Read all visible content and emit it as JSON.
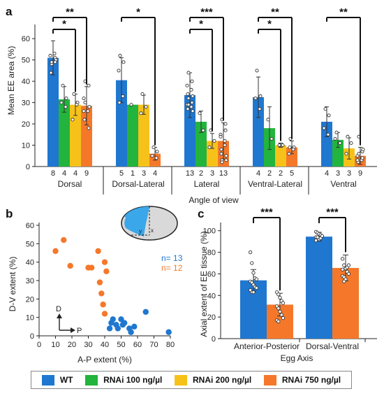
{
  "colors": {
    "WT": "#1f77d0",
    "RNAi100": "#22b43c",
    "RNAi200": "#f6c21a",
    "RNAi750": "#f5782a"
  },
  "panels": {
    "a": "a",
    "b": "b",
    "c": "c"
  },
  "legend": [
    {
      "label": "WT",
      "color": "#1f77d0"
    },
    {
      "label": "RNAi 100 ng/µl",
      "color": "#22b43c"
    },
    {
      "label": "RNAi 200 ng/µl",
      "color": "#f6c21a"
    },
    {
      "label": "RNAi 750 ng/µl",
      "color": "#f5782a"
    }
  ],
  "chart_data": [
    {
      "panel": "a",
      "type": "bar",
      "ylabel": "Mean EE area (%)",
      "xlabel": "Angle of view",
      "ylim": [
        0,
        65
      ],
      "yticks": [
        0,
        10,
        20,
        30,
        40,
        50,
        60
      ],
      "categories": [
        "Dorsal",
        "Dorsal-Lateral",
        "Lateral",
        "Ventral-Lateral",
        "Ventral"
      ],
      "series": [
        {
          "name": "WT",
          "values": [
            51,
            40.5,
            33.5,
            32.5,
            21
          ],
          "errors": [
            8,
            10.5,
            10.5,
            9.5,
            7
          ],
          "n": [
            "8",
            "5",
            "13",
            "4",
            "4"
          ]
        },
        {
          "name": "RNAi 100 ng/µl",
          "values": [
            31.5,
            29,
            21,
            18,
            12.5
          ],
          "errors": [
            6,
            0,
            5,
            10,
            3.5
          ],
          "n": [
            "4",
            "1",
            "2",
            "2",
            "3"
          ]
        },
        {
          "name": "RNAi 200 ng/µl",
          "values": [
            29,
            29,
            12,
            10,
            8.5
          ],
          "errors": [
            5,
            4.5,
            3.5,
            1,
            5
          ],
          "n": [
            "4",
            "3",
            "3",
            "2",
            "3"
          ]
        },
        {
          "name": "RNAi 750 ng/µl",
          "values": [
            28.5,
            6,
            12,
            9,
            5
          ],
          "errors": [
            9,
            3,
            8.5,
            3,
            4
          ],
          "n": [
            "9",
            "4",
            "13",
            "5",
            "9"
          ]
        }
      ],
      "points": [
        [
          [
            48,
            51,
            52,
            53,
            44,
            50,
            49,
            49
          ],
          [
            38,
            32,
            30,
            28
          ],
          [
            34,
            30,
            22,
            29
          ],
          [
            40,
            38,
            32,
            26,
            22,
            28,
            30,
            18,
            26
          ]
        ],
        [
          [
            52,
            49,
            45,
            33,
            30
          ],
          [
            29
          ],
          [
            34,
            28,
            25
          ],
          [
            9,
            7,
            5,
            4
          ]
        ],
        [
          [
            44,
            40,
            38,
            36,
            34,
            33,
            32,
            30,
            29,
            28,
            27,
            26,
            29
          ],
          [
            25,
            17
          ],
          [
            17,
            12,
            9
          ],
          [
            22,
            20,
            15,
            10,
            6,
            3,
            3,
            17,
            14,
            12,
            8,
            5,
            2
          ]
        ],
        [
          [
            45,
            33,
            32,
            27
          ],
          [
            22,
            13
          ],
          [
            10,
            10
          ],
          [
            13,
            9,
            6,
            8,
            9
          ]
        ],
        [
          [
            27,
            24,
            18,
            15
          ],
          [
            16,
            11,
            13
          ],
          [
            14,
            11,
            6
          ],
          [
            14,
            7,
            5,
            3,
            2,
            8,
            6,
            4,
            3
          ]
        ]
      ],
      "significance": [
        {
          "label": "**",
          "group": 0,
          "from": 0,
          "to": 3,
          "level": "upper"
        },
        {
          "label": "*",
          "group": 0,
          "from": 0,
          "to": 2,
          "level": "lower"
        },
        {
          "label": "*",
          "group": 1,
          "from": 0,
          "to": 3,
          "level": "upper"
        },
        {
          "label": "***",
          "group": 2,
          "from": 0,
          "to": 3,
          "level": "upper"
        },
        {
          "label": "*",
          "group": 2,
          "from": 0,
          "to": 2,
          "level": "lower"
        },
        {
          "label": "**",
          "group": 3,
          "from": 0,
          "to": 3,
          "level": "upper"
        },
        {
          "label": "*",
          "group": 3,
          "from": 0,
          "to": 2,
          "level": "lower"
        },
        {
          "label": "**",
          "group": 4,
          "from": 0,
          "to": 3,
          "level": "upper"
        }
      ]
    },
    {
      "panel": "b",
      "type": "scatter",
      "xlabel": "A-P extent (%)",
      "ylabel": "D-V extent (%)",
      "xlim": [
        0,
        80
      ],
      "ylim": [
        0,
        60
      ],
      "xticks": [
        0,
        10,
        20,
        30,
        40,
        50,
        60,
        70,
        80
      ],
      "yticks": [
        0,
        10,
        20,
        30,
        40,
        50,
        60
      ],
      "axis_arrows": {
        "up": "D",
        "right": "P"
      },
      "series": [
        {
          "label": "n= 13",
          "color": "#1f77d0",
          "points": [
            [
              43,
              4
            ],
            [
              44,
              7
            ],
            [
              45,
              9
            ],
            [
              47,
              6
            ],
            [
              48,
              4
            ],
            [
              50,
              9
            ],
            [
              51,
              6
            ],
            [
              52,
              7
            ],
            [
              55,
              4
            ],
            [
              56,
              2
            ],
            [
              58,
              5
            ],
            [
              65,
              13
            ],
            [
              79,
              2
            ]
          ]
        },
        {
          "label": "n= 12",
          "color": "#f5782a",
          "points": [
            [
              10,
              46
            ],
            [
              15,
              52
            ],
            [
              19,
              38
            ],
            [
              30,
              37
            ],
            [
              32,
              37
            ],
            [
              36,
              46
            ],
            [
              37,
              29
            ],
            [
              38,
              23
            ],
            [
              39,
              17
            ],
            [
              40,
              12
            ],
            [
              40,
              40
            ],
            [
              41,
              35
            ]
          ]
        }
      ]
    },
    {
      "panel": "c",
      "type": "bar",
      "ylabel": "Axial extent of EE tissue (%)",
      "xlabel": "Egg Axis",
      "ylim": [
        0,
        105
      ],
      "yticks": [
        0,
        20,
        40,
        60,
        80,
        100
      ],
      "categories": [
        "Anterior-Posterior",
        "Dorsal-Ventral"
      ],
      "series": [
        {
          "name": "WT",
          "values": [
            54,
            94.5
          ],
          "errors": [
            10,
            4
          ],
          "points": [
            [
              80,
              70,
              61,
              56,
              55,
              53,
              52,
              50,
              48,
              47,
              45,
              43,
              43
            ],
            [
              99,
              98,
              97,
              96,
              95,
              94,
              93,
              92,
              93,
              95,
              91,
              94
            ]
          ]
        },
        {
          "name": "RNAi 750 ng/µl",
          "values": [
            31.5,
            65.5
          ],
          "errors": [
            10.5,
            12
          ],
          "points": [
            [
              43,
              41,
              38,
              35,
              33,
              30,
              28,
              25,
              22,
              19,
              17,
              16
            ],
            [
              74,
              68,
              65,
              62,
              60,
              58,
              57,
              55,
              66,
              68,
              64,
              53
            ]
          ]
        }
      ],
      "significance": [
        {
          "label": "***",
          "group": 0
        },
        {
          "label": "***",
          "group": 1
        }
      ]
    }
  ]
}
